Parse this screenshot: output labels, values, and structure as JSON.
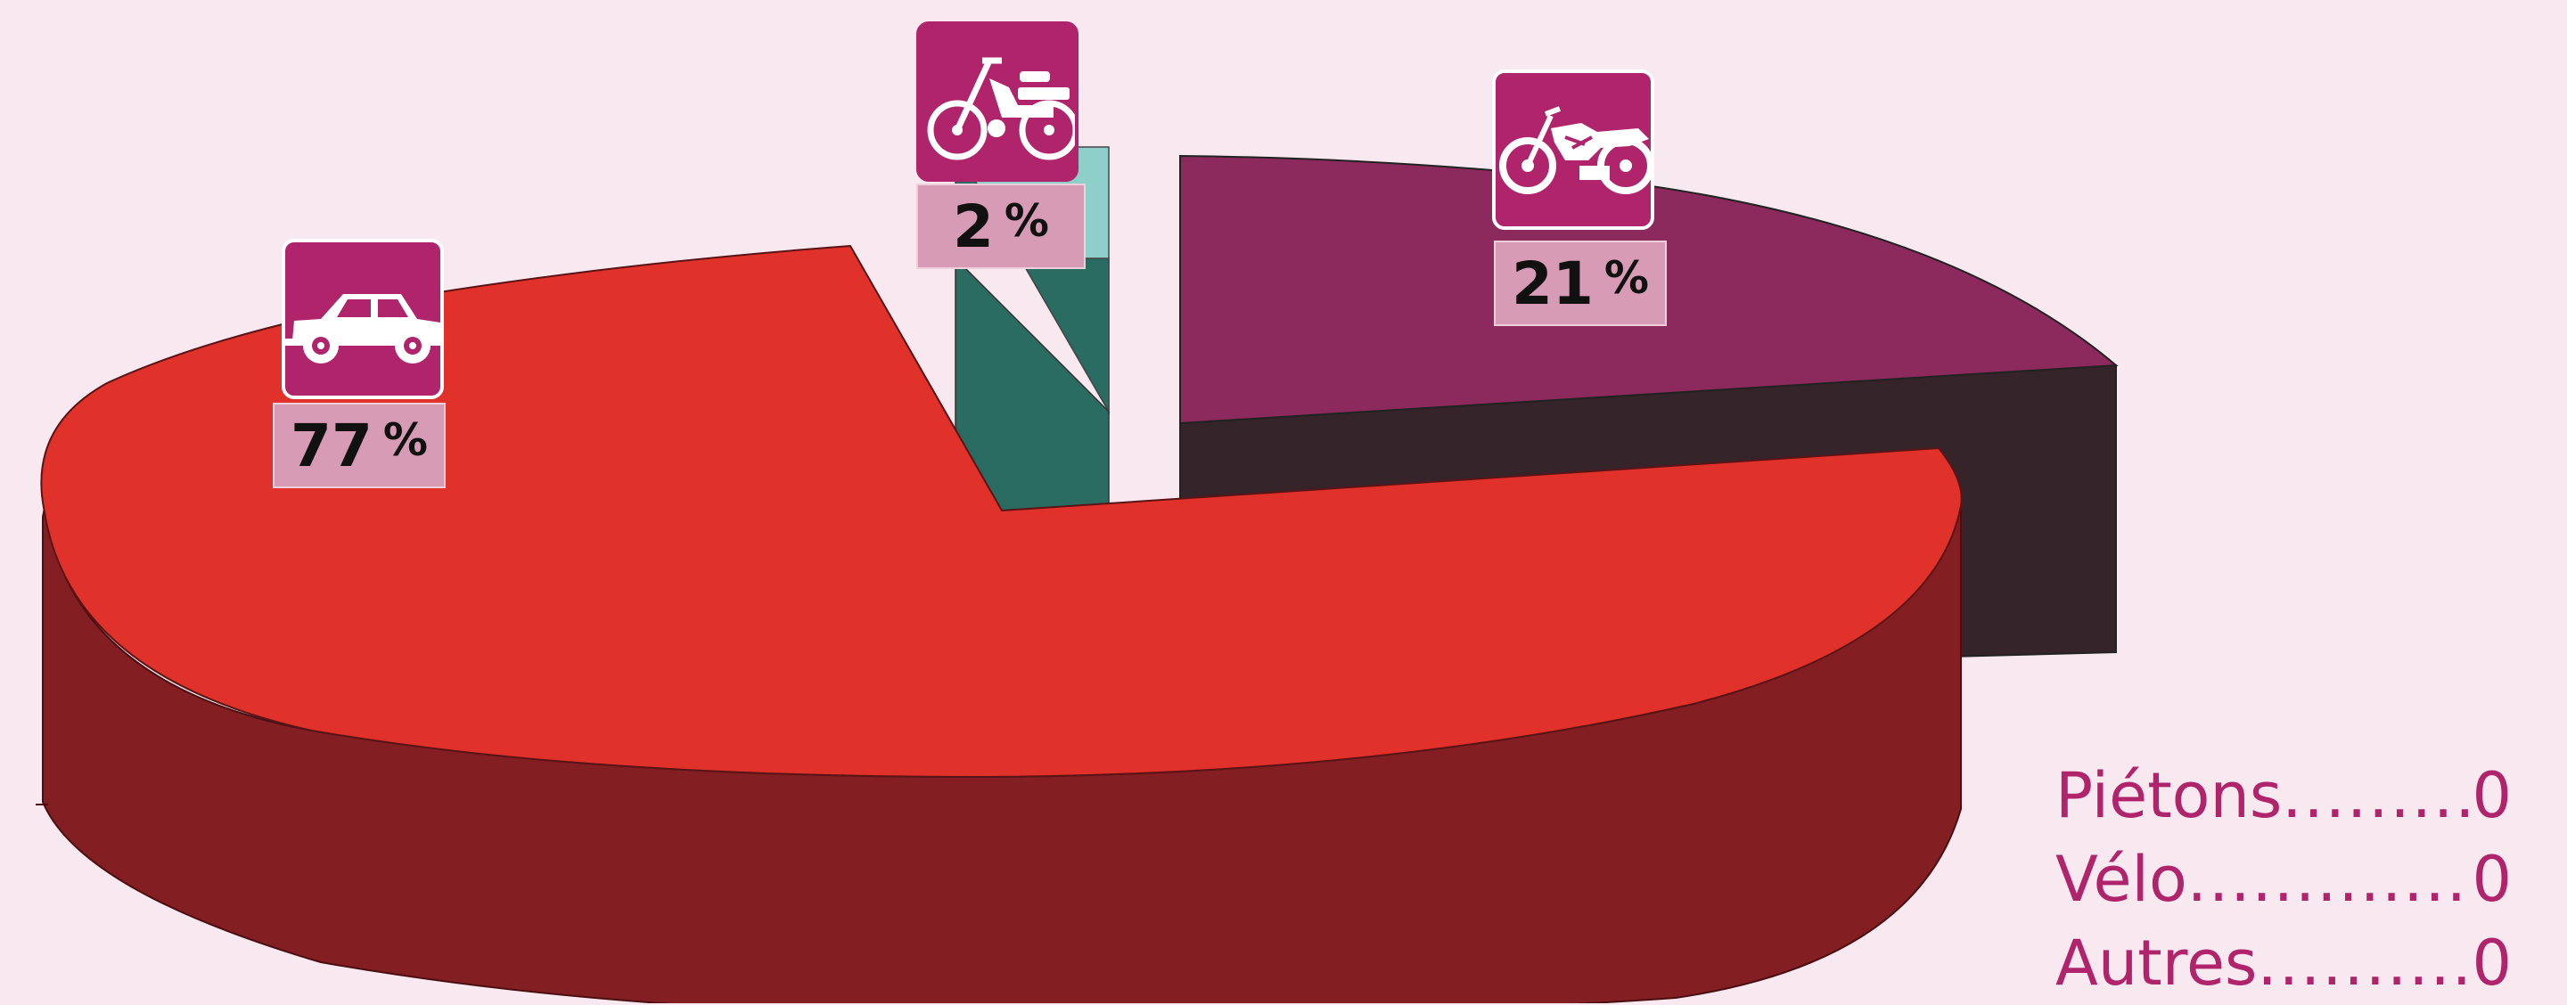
{
  "chart_data": {
    "type": "pie",
    "categories": [
      "Voiture",
      "Cyclomoteur",
      "Moto"
    ],
    "values": [
      77,
      2,
      21
    ],
    "icons": [
      "car-icon",
      "moped-icon",
      "motorcycle-icon"
    ],
    "labels": [
      {
        "value": "77",
        "unit": "%"
      },
      {
        "value": "2",
        "unit": "%"
      },
      {
        "value": "21",
        "unit": "%"
      }
    ],
    "colors": {
      "car_top": "#e0312a",
      "car_side": "#831e23",
      "moped_front": "#2a6b62",
      "moped_top": "#8ecfca",
      "moto_top": "#8c2a5d",
      "moto_side": "#35242a",
      "icon_bg": "#b0246c",
      "label_bg": "#d79bb6",
      "legend_text": "#b0246c",
      "background": "#f8e9f0"
    },
    "legend_extra": [
      {
        "label": "Piétons",
        "value": "0"
      },
      {
        "label": "Vélo",
        "value": "0"
      },
      {
        "label": "Autres",
        "value": "0"
      }
    ]
  }
}
